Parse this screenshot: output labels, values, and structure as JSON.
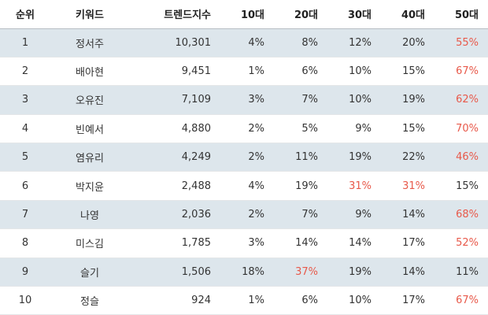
{
  "table": {
    "headers": {
      "rank": "순위",
      "keyword": "키워드",
      "trend": "트렌드지수",
      "age10": "10대",
      "age20": "20대",
      "age30": "30대",
      "age40": "40대",
      "age50": "50대"
    },
    "highlight_color": "#e8594a",
    "shade_color": "#dde6ec",
    "rows": [
      {
        "rank": "1",
        "keyword": "정서주",
        "trend": "10,301",
        "age10": "4%",
        "age20": "8%",
        "age30": "12%",
        "age40": "20%",
        "age50": "55%",
        "hi": [
          "age50"
        ]
      },
      {
        "rank": "2",
        "keyword": "배아현",
        "trend": "9,451",
        "age10": "1%",
        "age20": "6%",
        "age30": "10%",
        "age40": "15%",
        "age50": "67%",
        "hi": [
          "age50"
        ]
      },
      {
        "rank": "3",
        "keyword": "오유진",
        "trend": "7,109",
        "age10": "3%",
        "age20": "7%",
        "age30": "10%",
        "age40": "19%",
        "age50": "62%",
        "hi": [
          "age50"
        ]
      },
      {
        "rank": "4",
        "keyword": "빈예서",
        "trend": "4,880",
        "age10": "2%",
        "age20": "5%",
        "age30": "9%",
        "age40": "15%",
        "age50": "70%",
        "hi": [
          "age50"
        ]
      },
      {
        "rank": "5",
        "keyword": "염유리",
        "trend": "4,249",
        "age10": "2%",
        "age20": "11%",
        "age30": "19%",
        "age40": "22%",
        "age50": "46%",
        "hi": [
          "age50"
        ]
      },
      {
        "rank": "6",
        "keyword": "박지윤",
        "trend": "2,488",
        "age10": "4%",
        "age20": "19%",
        "age30": "31%",
        "age40": "31%",
        "age50": "15%",
        "hi": [
          "age30",
          "age40"
        ]
      },
      {
        "rank": "7",
        "keyword": "나영",
        "trend": "2,036",
        "age10": "2%",
        "age20": "7%",
        "age30": "9%",
        "age40": "14%",
        "age50": "68%",
        "hi": [
          "age50"
        ]
      },
      {
        "rank": "8",
        "keyword": "미스김",
        "trend": "1,785",
        "age10": "3%",
        "age20": "14%",
        "age30": "14%",
        "age40": "17%",
        "age50": "52%",
        "hi": [
          "age50"
        ]
      },
      {
        "rank": "9",
        "keyword": "슬기",
        "trend": "1,506",
        "age10": "18%",
        "age20": "37%",
        "age30": "19%",
        "age40": "14%",
        "age50": "11%",
        "hi": [
          "age20"
        ]
      },
      {
        "rank": "10",
        "keyword": "정슬",
        "trend": "924",
        "age10": "1%",
        "age20": "6%",
        "age30": "10%",
        "age40": "17%",
        "age50": "67%",
        "hi": [
          "age50"
        ]
      }
    ]
  }
}
